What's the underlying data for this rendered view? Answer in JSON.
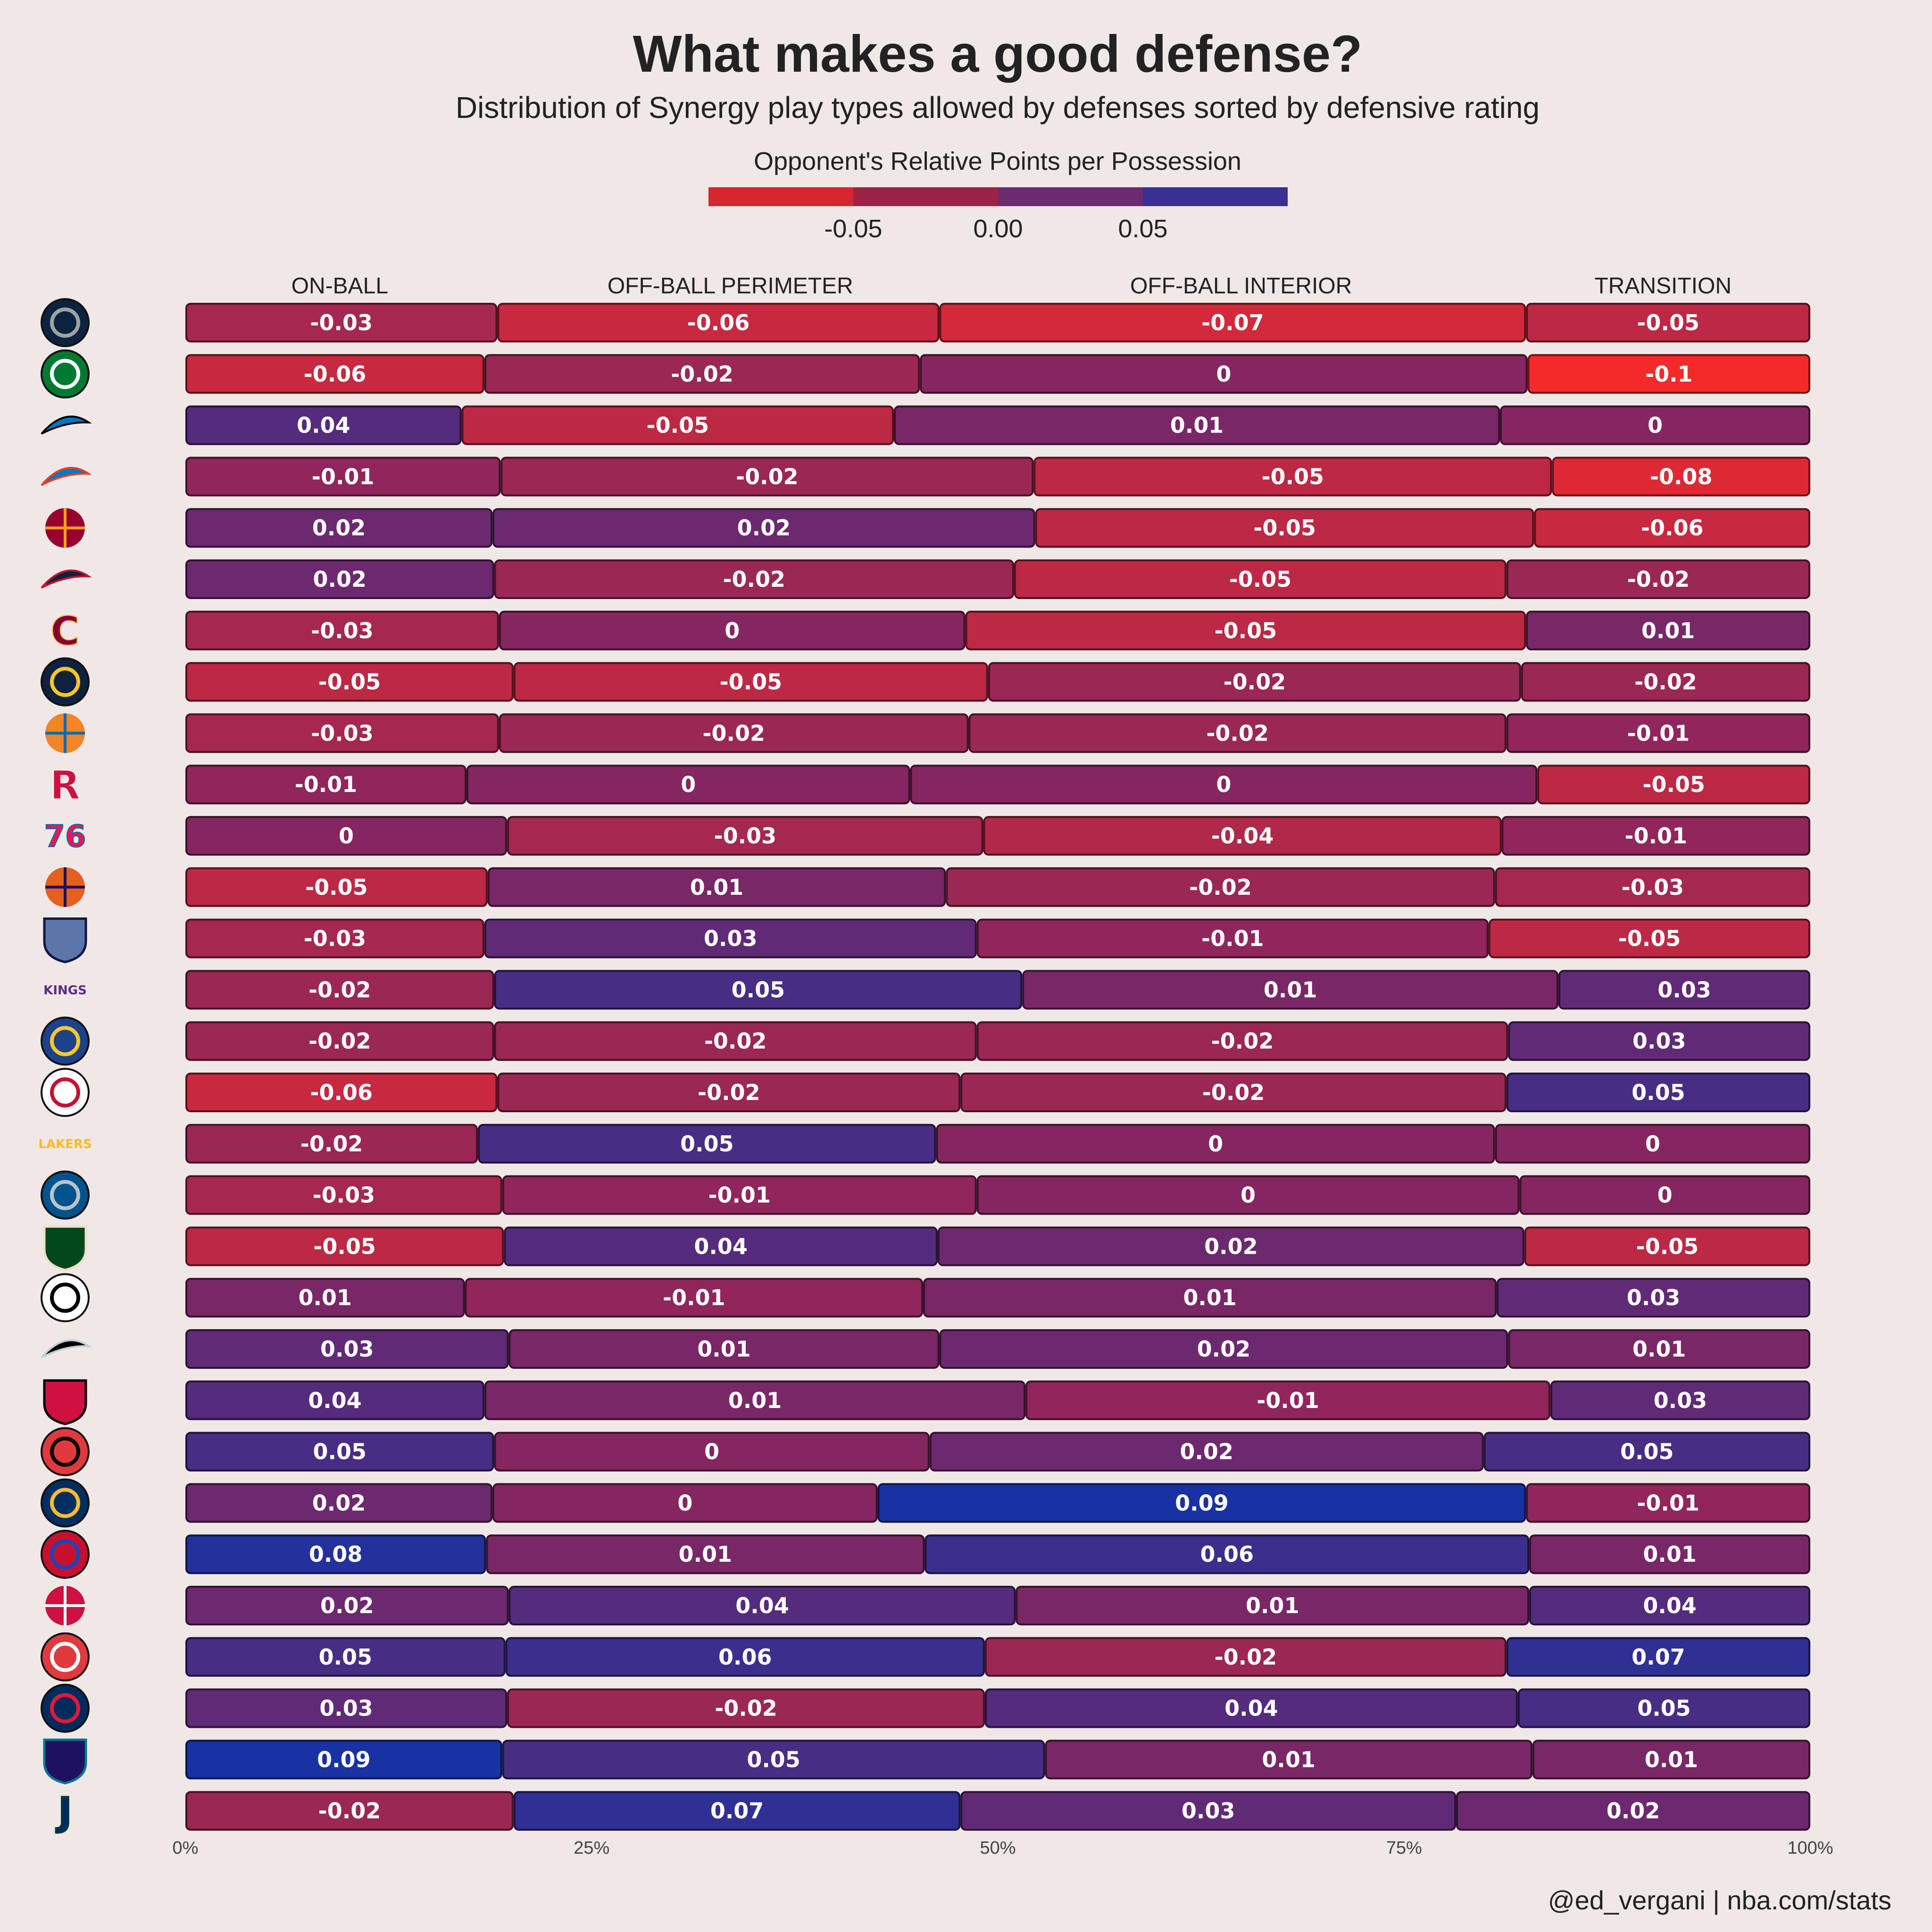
{
  "title": "What makes a good defense?",
  "subtitle": "Distribution of Synergy play types allowed by defenses sorted by defensive rating",
  "legend": {
    "title": "Opponent's Relative Points per Possession",
    "ticks": [
      "-0.05",
      "0.00",
      "0.05"
    ],
    "colors": [
      "#d62630",
      "#9b2347",
      "#6c2a6f",
      "#3a2f93"
    ]
  },
  "credit": "@ed_vergani | nba.com/stats",
  "chart_data": {
    "type": "bar",
    "orientation": "horizontal",
    "stacked_to_100": true,
    "columns": [
      "ON-BALL",
      "OFF-BALL PERIMETER",
      "OFF-BALL INTERIOR",
      "TRANSITION"
    ],
    "x_ticks": [
      "0%",
      "25%",
      "50%",
      "75%",
      "100%"
    ],
    "xlim": [
      0,
      100
    ],
    "color_scale": {
      "min": -0.1,
      "max": 0.1,
      "low_color": "#f42a2a",
      "mid_color": "#852660",
      "high_color": "#0c33aa"
    },
    "teams": [
      {
        "name": "Minnesota Timberwolves",
        "logo": "timberwolves-logo",
        "shares": [
          19.2,
          27.2,
          36.1,
          17.5
        ],
        "values": [
          "-0.03",
          "-0.06",
          "-0.07",
          "-0.05"
        ]
      },
      {
        "name": "Boston Celtics",
        "logo": "celtics-logo",
        "shares": [
          18.4,
          26.8,
          37.4,
          17.4
        ],
        "values": [
          "-0.06",
          "-0.02",
          "0",
          "-0.1"
        ]
      },
      {
        "name": "Orlando Magic",
        "logo": "magic-logo",
        "shares": [
          17.0,
          26.6,
          37.3,
          19.1
        ],
        "values": [
          "0.04",
          "-0.05",
          "0.01",
          "0"
        ]
      },
      {
        "name": "Oklahoma City Thunder",
        "logo": "thunder-logo",
        "shares": [
          19.4,
          32.8,
          31.9,
          15.9
        ],
        "values": [
          "-0.01",
          "-0.02",
          "-0.05",
          "-0.08"
        ]
      },
      {
        "name": "Miami Heat",
        "logo": "heat-logo",
        "shares": [
          18.9,
          33.4,
          30.7,
          17.0
        ],
        "values": [
          "0.02",
          "0.02",
          "-0.05",
          "-0.06"
        ]
      },
      {
        "name": "New Orleans Pelicans",
        "logo": "pelicans-logo",
        "shares": [
          19.0,
          32.0,
          30.3,
          18.7
        ],
        "values": [
          "0.02",
          "-0.02",
          "-0.05",
          "-0.02"
        ]
      },
      {
        "name": "Cleveland Cavaliers",
        "logo": "cavaliers-logo",
        "shares": [
          19.3,
          28.7,
          34.5,
          17.5
        ],
        "values": [
          "-0.03",
          "0",
          "-0.05",
          "0.01"
        ]
      },
      {
        "name": "Denver Nuggets",
        "logo": "nuggets-logo",
        "shares": [
          20.2,
          29.2,
          32.8,
          17.8
        ],
        "values": [
          "-0.05",
          "-0.05",
          "-0.02",
          "-0.02"
        ]
      },
      {
        "name": "New York Knicks",
        "logo": "knicks-logo",
        "shares": [
          19.3,
          28.9,
          33.1,
          18.7
        ],
        "values": [
          "-0.03",
          "-0.02",
          "-0.02",
          "-0.01"
        ]
      },
      {
        "name": "Houston Rockets",
        "logo": "rockets-logo",
        "shares": [
          17.3,
          27.3,
          38.6,
          16.8
        ],
        "values": [
          "-0.01",
          "0",
          "0",
          "-0.05"
        ]
      },
      {
        "name": "Philadelphia 76ers",
        "logo": "sixers-logo",
        "shares": [
          19.8,
          29.3,
          31.9,
          19.0
        ],
        "values": [
          "0",
          "-0.03",
          "-0.04",
          "-0.01"
        ]
      },
      {
        "name": "Phoenix Suns",
        "logo": "suns-logo",
        "shares": [
          18.6,
          28.2,
          33.8,
          19.4
        ],
        "values": [
          "-0.05",
          "0.01",
          "-0.02",
          "-0.03"
        ]
      },
      {
        "name": "Memphis Grizzlies",
        "logo": "grizzlies-logo",
        "shares": [
          18.4,
          30.3,
          31.5,
          19.8
        ],
        "values": [
          "-0.03",
          "0.03",
          "-0.01",
          "-0.05"
        ]
      },
      {
        "name": "Sacramento Kings",
        "logo": "kings-logo",
        "shares": [
          19.0,
          32.5,
          33.0,
          15.5
        ],
        "values": [
          "-0.02",
          "0.05",
          "0.01",
          "0.03"
        ]
      },
      {
        "name": "Golden State Warriors",
        "logo": "warriors-logo",
        "shares": [
          19.0,
          29.7,
          32.7,
          18.6
        ],
        "values": [
          "-0.02",
          "-0.02",
          "-0.02",
          "0.03"
        ]
      },
      {
        "name": "Los Angeles Clippers",
        "logo": "clippers-logo",
        "shares": [
          19.2,
          28.5,
          33.6,
          18.7
        ],
        "values": [
          "-0.06",
          "-0.02",
          "-0.02",
          "0.05"
        ]
      },
      {
        "name": "Los Angeles Lakers",
        "logo": "lakers-logo",
        "shares": [
          18.0,
          28.2,
          34.4,
          19.4
        ],
        "values": [
          "-0.02",
          "0.05",
          "0",
          "0"
        ]
      },
      {
        "name": "Dallas Mavericks",
        "logo": "mavericks-logo",
        "shares": [
          19.5,
          29.2,
          33.4,
          17.9
        ],
        "values": [
          "-0.03",
          "-0.01",
          "0",
          "0"
        ]
      },
      {
        "name": "Milwaukee Bucks",
        "logo": "bucks-logo",
        "shares": [
          19.6,
          26.7,
          36.1,
          17.6
        ],
        "values": [
          "-0.05",
          "0.04",
          "0.02",
          "-0.05"
        ]
      },
      {
        "name": "Brooklyn Nets",
        "logo": "nets-logo",
        "shares": [
          17.2,
          28.2,
          35.3,
          19.3
        ],
        "values": [
          "0.01",
          "-0.01",
          "0.01",
          "0.03"
        ]
      },
      {
        "name": "San Antonio Spurs",
        "logo": "spurs-logo",
        "shares": [
          19.9,
          26.5,
          35.0,
          18.6
        ],
        "values": [
          "0.03",
          "0.01",
          "0.02",
          "0.01"
        ]
      },
      {
        "name": "Chicago Bulls",
        "logo": "bulls-logo",
        "shares": [
          18.4,
          33.3,
          32.3,
          16.0
        ],
        "values": [
          "0.04",
          "0.01",
          "-0.01",
          "0.03"
        ]
      },
      {
        "name": "Portland Trail Blazers",
        "logo": "blazers-logo",
        "shares": [
          19.0,
          26.8,
          34.1,
          20.1
        ],
        "values": [
          "0.05",
          "0",
          "0.02",
          "0.05"
        ]
      },
      {
        "name": "Indiana Pacers",
        "logo": "pacers-logo",
        "shares": [
          18.9,
          23.7,
          39.9,
          17.5
        ],
        "values": [
          "0.02",
          "0",
          "0.09",
          "-0.01"
        ]
      },
      {
        "name": "Detroit Pistons",
        "logo": "pistons-logo",
        "shares": [
          18.5,
          27.0,
          37.2,
          17.3
        ],
        "values": [
          "0.08",
          "0.01",
          "0.06",
          "0.01"
        ]
      },
      {
        "name": "Toronto Raptors",
        "logo": "raptors-logo",
        "shares": [
          19.9,
          31.2,
          31.6,
          17.3
        ],
        "values": [
          "0.02",
          "0.04",
          "0.01",
          "0.04"
        ]
      },
      {
        "name": "Atlanta Hawks",
        "logo": "hawks-logo",
        "shares": [
          19.7,
          29.5,
          32.1,
          18.7
        ],
        "values": [
          "0.05",
          "0.06",
          "-0.02",
          "0.07"
        ]
      },
      {
        "name": "Washington Wizards",
        "logo": "wizards-logo",
        "shares": [
          19.8,
          29.4,
          32.8,
          18.0
        ],
        "values": [
          "0.03",
          "-0.02",
          "0.04",
          "0.05"
        ]
      },
      {
        "name": "Charlotte Hornets",
        "logo": "hornets-logo",
        "shares": [
          19.5,
          33.4,
          30.0,
          17.1
        ],
        "values": [
          "0.09",
          "0.05",
          "0.01",
          "0.01"
        ]
      },
      {
        "name": "Utah Jazz",
        "logo": "jazz-logo",
        "shares": [
          20.2,
          27.5,
          30.5,
          21.8
        ],
        "values": [
          "-0.02",
          "0.07",
          "0.03",
          "0.02"
        ]
      }
    ]
  }
}
